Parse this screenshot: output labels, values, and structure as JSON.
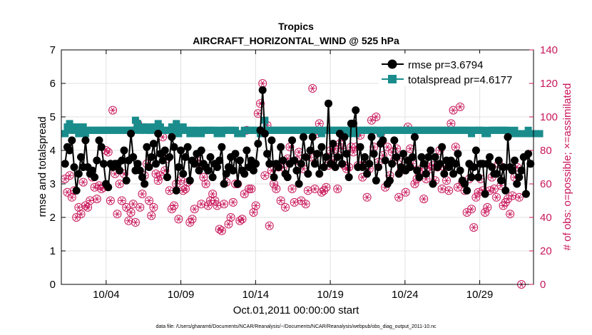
{
  "chart_data": {
    "type": "line",
    "title_line1": "Tropics",
    "title_line2": "AIRCRAFT_HORIZONTAL_WIND @ 525 hPa",
    "xlabel": "Oct.01,2011 00:00:00 start",
    "ylabel_left": "rmse and totalspread",
    "ylabel_right": "# of obs: o=possible; ×=assimilated",
    "footer": "data file: /Users/gharamti/Documents/NCAR/Reanalysis/~/Documents/NCAR/Reanalysis/webpub/obs_diag_output_2011-10.nc",
    "x_domain": [
      1.0,
      32.6
    ],
    "ylim_left": [
      0,
      7
    ],
    "ylim_right": [
      0,
      140
    ],
    "x_ticks": [
      {
        "value": 4,
        "label": "10/04"
      },
      {
        "value": 9,
        "label": "10/09"
      },
      {
        "value": 14,
        "label": "10/14"
      },
      {
        "value": 19,
        "label": "10/19"
      },
      {
        "value": 24,
        "label": "10/24"
      },
      {
        "value": 29,
        "label": "10/29"
      }
    ],
    "y_ticks_left": [
      "0",
      "1",
      "2",
      "3",
      "4",
      "5",
      "6",
      "7"
    ],
    "y_ticks_right": [
      "0",
      "20",
      "40",
      "60",
      "80",
      "100",
      "120",
      "140"
    ],
    "colors": {
      "rmse": "#000000",
      "spread": "#1a8c8c",
      "obs": "#c8175a",
      "grid": "#e2e2e2"
    },
    "series": [
      {
        "name": "rmse",
        "legend": "rmse pr=3.6794",
        "values": [
          3.6,
          4.1,
          4.0,
          4.3,
          3.5,
          2.8,
          3.3,
          3.8,
          3.5,
          4.3,
          3.5,
          3.3,
          3.4,
          3.2,
          3.7,
          4.3,
          4.1,
          3.6,
          3.0,
          2.9,
          3.6,
          3.5,
          3.6,
          3.6,
          3.4,
          3.7,
          4.0,
          3.1,
          3.7,
          4.5,
          3.8,
          3.4,
          3.6,
          3.4,
          3.2,
          3.0,
          4.1,
          3.5,
          3.8,
          4.2,
          3.6,
          4.5,
          3.9,
          3.7,
          4.0,
          3.2,
          3.8,
          4.4,
          4.1,
          2.8,
          3.5,
          4.0,
          3.3,
          3.8,
          4.1,
          3.1,
          3.7,
          3.6,
          3.9,
          3.4,
          4.0,
          3.6,
          3.5,
          3.4,
          3.8,
          3.2,
          3.6,
          3.5,
          3.7,
          4.1,
          3.0,
          3.3,
          3.5,
          3.8,
          3.4,
          3.9,
          3.0,
          3.7,
          3.4,
          3.3,
          4.0,
          3.5,
          3.7,
          3.4,
          3.6,
          4.2,
          4.6,
          5.8,
          4.5,
          3.9,
          3.6,
          4.3,
          3.2,
          3.6,
          3.5,
          4.1,
          3.7,
          3.3,
          3.2,
          3.6,
          4.3,
          3.7,
          3.4,
          3.0,
          3.6,
          4.4,
          3.8,
          3.3,
          4.0,
          4.4,
          3.6,
          3.9,
          3.3,
          4.1,
          3.5,
          3.8,
          5.4,
          3.6,
          4.2,
          3.5,
          3.8,
          4.5,
          3.6,
          4.4,
          3.9,
          3.2,
          4.8,
          4.8,
          5.2,
          3.5,
          4.1,
          3.5,
          3.8,
          3.3,
          3.6,
          4.4,
          3.9,
          3.1,
          3.5,
          4.2,
          4.3,
          3.7,
          3.0,
          3.1,
          3.6,
          4.3,
          3.8,
          3.3,
          3.5,
          3.9,
          3.4,
          3.7,
          3.5,
          3.8,
          4.4,
          3.4,
          3.2,
          3.8,
          3.6,
          3.3,
          3.8,
          4.0,
          3.0,
          3.8,
          3.5,
          3.6,
          4.1,
          3.3,
          3.7,
          3.5,
          3.7,
          3.3,
          3.6,
          3.9,
          3.4,
          3.1,
          3.0,
          2.8,
          3.6,
          3.2,
          3.5,
          4.0,
          3.2,
          3.6,
          3.6,
          2.7,
          3.6,
          3.8,
          3.5,
          3.3,
          3.3,
          3.7,
          3.1,
          3.5,
          2.8,
          4.4,
          3.5,
          3.4,
          3.7,
          3.0,
          3.2,
          3.4,
          3.8,
          2.7,
          3.9,
          3.6
        ]
      },
      {
        "name": "totalspread",
        "legend": "totalspread pr=4.6177",
        "values": [
          4.5,
          4.7,
          4.8,
          4.6,
          4.6,
          4.7,
          4.5,
          4.6,
          4.7,
          4.5,
          4.6,
          4.6,
          4.6,
          4.6,
          4.6,
          4.6,
          4.6,
          4.6,
          4.6,
          4.6,
          4.6,
          4.6,
          4.6,
          4.6,
          4.6,
          4.6,
          4.6,
          4.6,
          4.6,
          4.6,
          4.6,
          4.9,
          4.8,
          4.6,
          4.7,
          4.6,
          4.7,
          4.6,
          4.6,
          4.7,
          4.6,
          4.8,
          4.7,
          4.6,
          4.6,
          4.6,
          4.6,
          4.7,
          4.6,
          4.8,
          4.5,
          4.6,
          4.7,
          4.6,
          4.6,
          4.5,
          4.6,
          4.6,
          4.5,
          4.6,
          4.5,
          4.6,
          4.6,
          4.6,
          4.6,
          4.6,
          4.6,
          4.5,
          4.6,
          4.5,
          4.6,
          4.6,
          4.6,
          4.6,
          4.6,
          4.6,
          4.5,
          4.5,
          4.5,
          4.6,
          4.6,
          4.6,
          4.6,
          4.6,
          4.6,
          4.6,
          4.5,
          4.6,
          4.9,
          4.6,
          4.6,
          4.6,
          4.6,
          4.6,
          4.6,
          4.6,
          4.6,
          4.6,
          4.6,
          4.6,
          4.6,
          4.6,
          4.6,
          4.6,
          4.6,
          4.6,
          4.6,
          4.6,
          4.6,
          4.6,
          4.6,
          4.6,
          4.6,
          4.5,
          4.6,
          4.6,
          4.6,
          4.6,
          4.6,
          4.6,
          4.6,
          4.6,
          4.6,
          4.6,
          4.6,
          4.5,
          4.6,
          4.6,
          4.5,
          4.6,
          4.6,
          4.6,
          4.6,
          4.6,
          4.6,
          4.6,
          4.6,
          4.6,
          4.6,
          4.5,
          4.6,
          4.6,
          4.6,
          4.6,
          4.6,
          4.6,
          4.6,
          4.6,
          4.6,
          4.6,
          4.6,
          4.6,
          4.6,
          4.6,
          4.6,
          4.6,
          4.6,
          4.6,
          4.6,
          4.6,
          4.6,
          4.6,
          4.6,
          4.6,
          4.6,
          4.6,
          4.6,
          4.6,
          4.6,
          4.6,
          4.6,
          4.6,
          4.6,
          4.6,
          4.6,
          4.6,
          4.6,
          4.6,
          4.6,
          4.5,
          4.6,
          4.6,
          4.6,
          4.6,
          4.6,
          4.5,
          4.5,
          4.6,
          4.6,
          4.6,
          4.6,
          4.6,
          4.6,
          4.6,
          4.6,
          4.6,
          4.5,
          4.5,
          4.6,
          4.5,
          4.5,
          4.5,
          4.5,
          4.5,
          4.6,
          4.5,
          4.5,
          4.5,
          4.5,
          4.5
        ]
      },
      {
        "name": "obs_possible",
        "values": [
          63,
          55,
          65,
          52,
          56,
          40,
          46,
          42,
          61,
          47,
          46,
          50,
          64,
          58,
          51,
          59,
          57,
          58,
          80,
          79,
          50,
          104,
          66,
          42,
          60,
          50,
          66,
          46,
          38,
          43,
          48,
          37,
          96,
          46,
          54,
          65,
          72,
          50,
          41,
          46,
          66,
          62,
          65,
          88,
          68,
          75,
          56,
          45,
          47,
          60,
          39,
          62,
          56,
          57,
          61,
          37,
          39,
          45,
          74,
          72,
          48,
          64,
          60,
          47,
          50,
          54,
          50,
          47,
          33,
          32,
          48,
          61,
          36,
          40,
          49,
          60,
          60,
          38,
          39,
          54,
          92,
          57,
          57,
          43,
          47,
          102,
          108,
          120,
          65,
          95,
          35,
          68,
          60,
          57,
          70,
          50,
          70,
          46,
          75,
          82,
          57,
          49,
          74,
          79,
          50,
          69,
          48,
          56,
          76,
          117,
          57,
          90,
          96,
          55,
          56,
          58,
          71,
          80,
          74,
          81,
          57,
          84,
          81,
          71,
          69,
          70,
          82,
          79,
          82,
          71,
          89,
          64,
          73,
          52,
          69,
          98,
          82,
          100,
          73,
          90,
          77,
          58,
          82,
          65,
          79,
          74,
          81,
          52,
          68,
          75,
          55,
          94,
          81,
          72,
          60,
          63,
          66,
          69,
          51,
          63,
          70,
          69,
          71,
          62,
          70,
          80,
          57,
          70,
          62,
          56,
          96,
          104,
          82,
          58,
          106,
          61,
          56,
          43,
          63,
          45,
          34,
          52,
          55,
          63,
          56,
          43,
          46,
          56,
          64,
          57,
          52,
          72,
          59,
          47,
          49,
          51,
          42,
          53,
          64,
          70,
          52,
          0
        ]
      },
      {
        "name": "obs_assimilated",
        "values": [
          63,
          55,
          65,
          52,
          56,
          40,
          46,
          42,
          61,
          47,
          46,
          50,
          64,
          58,
          51,
          59,
          57,
          58,
          80,
          79,
          50,
          104,
          66,
          42,
          60,
          50,
          66,
          46,
          38,
          43,
          48,
          37,
          96,
          46,
          54,
          65,
          72,
          50,
          41,
          46,
          66,
          62,
          65,
          88,
          68,
          75,
          56,
          45,
          47,
          60,
          39,
          62,
          56,
          57,
          61,
          37,
          39,
          45,
          74,
          72,
          48,
          64,
          60,
          47,
          50,
          54,
          50,
          47,
          33,
          32,
          48,
          61,
          36,
          40,
          49,
          60,
          60,
          38,
          39,
          54,
          92,
          57,
          57,
          43,
          47,
          102,
          108,
          120,
          65,
          95,
          35,
          68,
          60,
          57,
          70,
          50,
          70,
          46,
          75,
          82,
          57,
          49,
          74,
          79,
          50,
          69,
          48,
          56,
          76,
          117,
          57,
          90,
          96,
          55,
          56,
          58,
          71,
          80,
          74,
          81,
          57,
          84,
          81,
          71,
          69,
          70,
          82,
          79,
          82,
          71,
          89,
          64,
          73,
          52,
          69,
          98,
          82,
          100,
          73,
          90,
          77,
          58,
          82,
          65,
          79,
          74,
          81,
          52,
          68,
          75,
          55,
          94,
          81,
          72,
          60,
          63,
          66,
          69,
          51,
          63,
          70,
          69,
          71,
          62,
          70,
          80,
          57,
          70,
          62,
          56,
          96,
          104,
          82,
          58,
          106,
          61,
          56,
          43,
          63,
          45,
          34,
          52,
          55,
          63,
          56,
          43,
          46,
          56,
          64,
          57,
          52,
          72,
          59,
          47,
          49,
          51,
          42,
          53,
          64,
          70,
          52,
          0
        ]
      }
    ]
  }
}
